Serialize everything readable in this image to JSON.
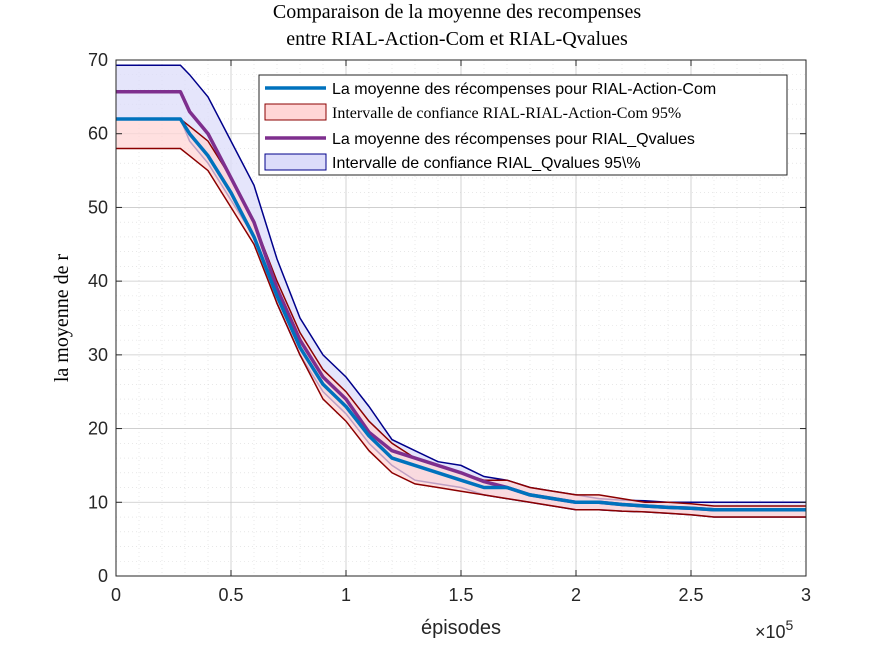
{
  "chart_data": {
    "type": "line",
    "title": [
      "Comparaison de la moyenne des recompenses",
      "entre RIAL-Action-Com et RIAL-Qvalues"
    ],
    "xlabel": "épisodes",
    "ylabel": "la moyenne de r",
    "x_exponent_label": "×10",
    "x_exponent_power": "5",
    "xlim": [
      0,
      300000
    ],
    "ylim": [
      0,
      70
    ],
    "x_ticks": [
      0,
      50000,
      100000,
      150000,
      200000,
      250000,
      300000
    ],
    "x_tick_labels": [
      "0",
      "0.5",
      "1",
      "1.5",
      "2",
      "2.5",
      "3"
    ],
    "y_ticks": [
      0,
      10,
      20,
      30,
      40,
      50,
      60,
      70
    ],
    "y_tick_labels": [
      "0",
      "10",
      "20",
      "30",
      "40",
      "50",
      "60",
      "70"
    ],
    "grid": true,
    "minor_grid": true,
    "legend_position": "top-right",
    "series": [
      {
        "name": "La moyenne des récompenses pour RIAL-Action-Com",
        "kind": "mean",
        "color": "#0072BD",
        "x": [
          0,
          28000,
          32000,
          40000,
          50000,
          60000,
          70000,
          80000,
          90000,
          100000,
          110000,
          120000,
          130000,
          140000,
          150000,
          160000,
          170000,
          180000,
          190000,
          200000,
          210000,
          220000,
          230000,
          240000,
          250000,
          260000,
          265000,
          300000
        ],
        "y": [
          62,
          62,
          60,
          57,
          52,
          46,
          38,
          31,
          26,
          23,
          19,
          16,
          15,
          14,
          13,
          12,
          12,
          11,
          10.5,
          10,
          10,
          9.7,
          9.5,
          9.3,
          9.2,
          9,
          9,
          9
        ]
      },
      {
        "name": "Intervalle de confiance RIAL-RIAL-Action-Com 95%",
        "kind": "band",
        "fill": "#FFD6D6",
        "edge": "#8B0000",
        "x": [
          0,
          28000,
          32000,
          40000,
          50000,
          60000,
          70000,
          80000,
          90000,
          100000,
          110000,
          120000,
          130000,
          140000,
          150000,
          160000,
          170000,
          180000,
          190000,
          200000,
          210000,
          220000,
          230000,
          240000,
          250000,
          260000,
          265000,
          300000
        ],
        "lower": [
          58,
          58,
          57,
          55,
          50,
          45,
          37,
          30,
          24,
          21,
          17,
          14,
          12.5,
          12,
          11.5,
          11,
          10.5,
          10,
          9.5,
          9,
          9,
          8.8,
          8.7,
          8.5,
          8.3,
          8,
          8,
          8
        ],
        "upper": [
          62,
          62,
          61,
          59,
          54,
          48,
          40,
          33,
          28,
          25,
          21,
          18,
          16,
          15,
          14,
          13,
          13,
          12,
          11.5,
          11,
          11,
          10.5,
          10,
          10,
          9.8,
          9.5,
          9.5,
          9.5
        ]
      },
      {
        "name": "La moyenne des récompenses pour RIAL_Qvalues",
        "kind": "mean",
        "color": "#7E2F8E",
        "x": [
          0,
          28000,
          32000,
          40000,
          50000,
          60000,
          70000,
          80000,
          90000,
          100000,
          110000,
          120000,
          130000,
          140000,
          150000,
          160000,
          170000,
          180000,
          190000,
          200000,
          210000,
          220000,
          230000,
          240000,
          250000,
          260000,
          265000,
          300000
        ],
        "y": [
          65.7,
          65.7,
          63,
          60,
          54,
          48,
          39,
          32,
          27,
          24,
          19.5,
          17,
          16,
          15,
          14,
          12.8,
          12,
          11,
          10.5,
          10,
          10,
          9.7,
          9.5,
          9.3,
          9.2,
          9,
          9,
          9
        ]
      },
      {
        "name": "Intervalle de confiance RIAL_Qvalues 95\\%",
        "kind": "band",
        "fill": "#DCDCFA",
        "edge": "#00008B",
        "x": [
          0,
          28000,
          32000,
          40000,
          50000,
          60000,
          70000,
          80000,
          90000,
          100000,
          110000,
          120000,
          130000,
          140000,
          150000,
          160000,
          170000,
          180000,
          190000,
          200000,
          210000,
          220000,
          230000,
          240000,
          250000,
          260000,
          265000,
          300000
        ],
        "lower": [
          62,
          62,
          59,
          56,
          51,
          46,
          37,
          30,
          25,
          22,
          18,
          15,
          13,
          12.5,
          12,
          11,
          10.5,
          10,
          9.5,
          9,
          9,
          8.8,
          8.7,
          8.5,
          8.3,
          8,
          8,
          8
        ],
        "upper": [
          69.3,
          69.3,
          68,
          65,
          59,
          53,
          43,
          35,
          30,
          27,
          23,
          18.5,
          17,
          15.5,
          15,
          13.5,
          13,
          12,
          11.5,
          11,
          10.5,
          10.3,
          10.2,
          10,
          10,
          10,
          10,
          10
        ]
      }
    ]
  }
}
